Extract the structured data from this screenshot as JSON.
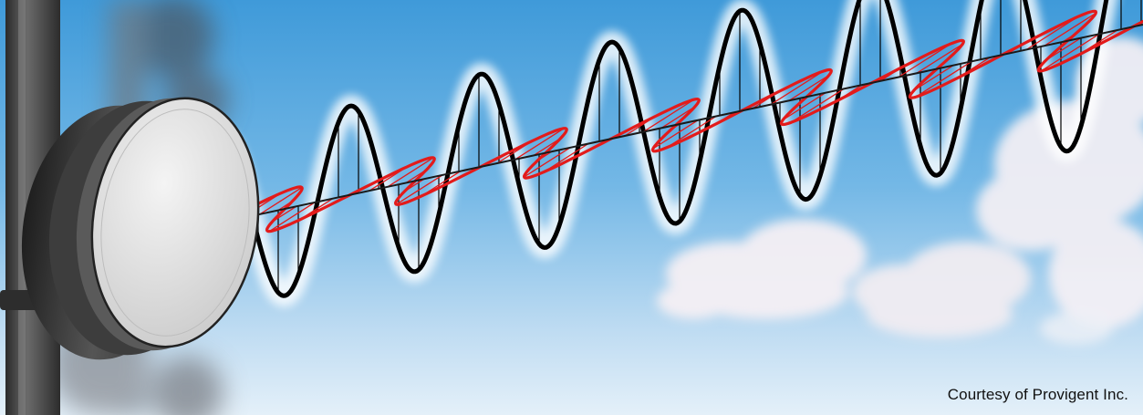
{
  "credit": "Courtesy of Provigent Inc.",
  "colors": {
    "sky_top": "#4aa3dd",
    "sky_bottom": "#dcecf8",
    "wave_vertical": "#000000",
    "wave_horizontal": "#e31b1b",
    "cloud": "#f3eef3",
    "antenna_face": "#e6e6e6",
    "antenna_body": "#3a3a3a",
    "pole": "#3d3d3d"
  },
  "icons": {
    "antenna": "microwave-dish-antenna",
    "vertical_wave": "vertical-polarized-sine-wave",
    "horizontal_wave": "horizontal-polarized-sine-wave"
  }
}
